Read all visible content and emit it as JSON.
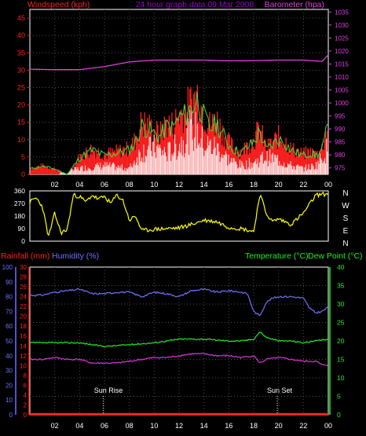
{
  "colors": {
    "wind": "#ff2020",
    "gust_fill": "#ffffff",
    "gust_edge": "#3ee03e",
    "wind_gust_mix": "#c8ffc8",
    "baro": "#e040e0",
    "dir": "#ffff00",
    "humidity": "#7070ff",
    "temp": "#22ee22",
    "dew": "#dd33dd",
    "rain": "#ff2020",
    "grid": "#505050",
    "axis": "#ffffff"
  },
  "header": {
    "left": "Windspeed (kph)",
    "center": "24 hour graph data  09 Mar 2008",
    "right": "Barometer (hpa)"
  },
  "middle": {
    "compass": [
      "N",
      "W",
      "S",
      "E",
      "N"
    ]
  },
  "bottom": {
    "rain_label": "Rainfall (mm)",
    "humidity_label": "Humidity (%)",
    "temp_label": "Temperature (°C)",
    "dew_label": "Dew Point (°C)",
    "sunrise": "Sun Rise",
    "sunset": "Sun Set"
  },
  "chart_data": [
    {
      "type": "area",
      "name": "wind-and-barometer",
      "x_ticks": [
        "02",
        "04",
        "06",
        "08",
        "10",
        "12",
        "14",
        "16",
        "18",
        "20",
        "22",
        "00"
      ],
      "y_left_ticks": [
        0,
        5,
        10,
        15,
        20,
        25,
        30,
        35,
        40,
        45
      ],
      "y_right_ticks": [
        975,
        980,
        985,
        990,
        995,
        1000,
        1005,
        1010,
        1015,
        1020,
        1025,
        1030,
        1035
      ],
      "ylim_left": [
        0,
        47.5
      ],
      "ylim_right": [
        972.5,
        1036
      ],
      "grid": true,
      "barometer": {
        "x": [
          0,
          2,
          4,
          6,
          8,
          10,
          12,
          14,
          16,
          18,
          20,
          22,
          23.5,
          24
        ],
        "y": [
          1013,
          1012.8,
          1012.8,
          1014,
          1015.8,
          1016.5,
          1016.5,
          1016.5,
          1016.2,
          1016.3,
          1016.5,
          1016.5,
          1016,
          1018.5
        ]
      },
      "wind_gust_envelope": {
        "x": [
          0,
          1,
          2,
          3,
          4,
          5,
          6,
          7,
          8,
          8.5,
          9,
          9.5,
          10,
          10.5,
          11,
          11.5,
          12,
          12.5,
          13,
          13.5,
          14,
          14.5,
          15,
          15.5,
          16,
          16.5,
          17,
          17.5,
          18,
          18.5,
          19,
          19.5,
          20,
          20.5,
          21,
          21.5,
          22,
          22.5,
          23,
          23.5,
          24
        ],
        "y": [
          2,
          3,
          2,
          0,
          6,
          9,
          7,
          8,
          9,
          12,
          18,
          17,
          15,
          14,
          18,
          17,
          21,
          22,
          25,
          28,
          21,
          17,
          19,
          15,
          11,
          9,
          8,
          10,
          12,
          16,
          9,
          11,
          13,
          12,
          9,
          8,
          7,
          8,
          7,
          9,
          18
        ]
      },
      "wind_avg": {
        "x": [
          0,
          2,
          4,
          6,
          8,
          9,
          10,
          11,
          12,
          13,
          13.5,
          14,
          15,
          16,
          17,
          18,
          19,
          20,
          21,
          22,
          23,
          24
        ],
        "y": [
          0,
          0,
          2,
          3,
          2,
          8,
          9,
          7,
          10,
          15,
          14,
          10,
          9,
          5,
          3,
          4,
          6,
          5,
          3,
          2,
          3,
          9
        ]
      }
    },
    {
      "type": "line",
      "name": "wind-direction",
      "x_ticks": [
        "02",
        "04",
        "06",
        "08",
        "10",
        "12",
        "14",
        "16",
        "18",
        "20",
        "22",
        "00"
      ],
      "y_ticks": [
        0,
        90,
        180,
        270,
        360
      ],
      "ylim": [
        0,
        360
      ],
      "x": [
        0,
        0.5,
        1,
        1.5,
        2,
        2.5,
        3,
        3.5,
        4,
        4.5,
        5,
        5.5,
        6,
        6.5,
        7,
        7.5,
        8,
        8.5,
        9,
        10,
        11,
        12,
        13,
        14,
        15,
        16,
        17,
        18,
        18.5,
        19,
        19.5,
        20,
        21,
        22,
        23,
        24
      ],
      "y": [
        280,
        310,
        250,
        30,
        200,
        60,
        80,
        330,
        320,
        280,
        330,
        300,
        320,
        270,
        330,
        290,
        150,
        180,
        75,
        85,
        90,
        95,
        120,
        150,
        140,
        100,
        90,
        70,
        340,
        200,
        140,
        160,
        120,
        200,
        330,
        340
      ]
    },
    {
      "type": "line",
      "name": "temperature-humidity",
      "x_ticks": [
        "02",
        "04",
        "06",
        "08",
        "10",
        "12",
        "14",
        "16",
        "18",
        "20",
        "22",
        "00"
      ],
      "y_rain_ticks": [
        0,
        2,
        4,
        6,
        8,
        10,
        12,
        14,
        16,
        18,
        20,
        22,
        24,
        26,
        28,
        30
      ],
      "y_humidity_ticks": [
        0,
        10,
        20,
        30,
        40,
        50,
        60,
        70,
        80,
        90,
        100
      ],
      "y_temp_ticks": [
        0,
        5,
        10,
        15,
        20,
        25,
        30,
        35,
        40
      ],
      "ylim_temp": [
        0,
        40
      ],
      "ylim_humidity": [
        0,
        100
      ],
      "grid": true,
      "series": [
        {
          "name": "Humidity (%)",
          "axis": "humidity",
          "x": [
            0,
            1,
            2,
            3,
            4,
            5,
            6,
            7,
            8,
            9,
            10,
            11,
            12,
            13,
            14,
            15,
            16,
            17,
            17.5,
            18,
            18.5,
            19,
            19.5,
            20,
            21,
            22,
            22.5,
            23,
            23.5,
            24
          ],
          "y": [
            81,
            81,
            83,
            84,
            85,
            82,
            82,
            83,
            83,
            80,
            83,
            82,
            80,
            84,
            85,
            83,
            84,
            83,
            82,
            70,
            67,
            76,
            79,
            80,
            80,
            79,
            72,
            69,
            70,
            73
          ]
        },
        {
          "name": "Temperature (°C)",
          "axis": "temp",
          "x": [
            0,
            2,
            4,
            6,
            8,
            10,
            12,
            14,
            16,
            17,
            18,
            18.5,
            19,
            20,
            21,
            22,
            23,
            24
          ],
          "y": [
            19.5,
            19.5,
            19.5,
            18.5,
            19,
            19.5,
            20.5,
            20.5,
            20,
            20,
            20.5,
            22.5,
            21,
            20,
            20,
            19.5,
            20,
            20.5
          ]
        },
        {
          "name": "Dew Point (°C)",
          "axis": "temp",
          "x": [
            0,
            1,
            2,
            3,
            4,
            5,
            6,
            7,
            8,
            9,
            10,
            11,
            12,
            13,
            14,
            15,
            16,
            17,
            18,
            18.5,
            19,
            20,
            21,
            22,
            23,
            23.5,
            24
          ],
          "y": [
            15,
            15,
            15.5,
            15,
            15,
            14,
            14,
            14,
            14.5,
            15,
            15.5,
            15.5,
            16,
            16.5,
            16.5,
            16,
            16,
            15.5,
            16,
            14,
            15,
            15.5,
            15,
            14.5,
            14.5,
            13.5,
            13.5
          ]
        },
        {
          "name": "Rainfall (mm)",
          "axis": "rain",
          "x": [
            0,
            24
          ],
          "y": [
            0,
            0
          ]
        }
      ],
      "sunrise_hour": 5.9,
      "sunset_hour": 19.9
    }
  ]
}
